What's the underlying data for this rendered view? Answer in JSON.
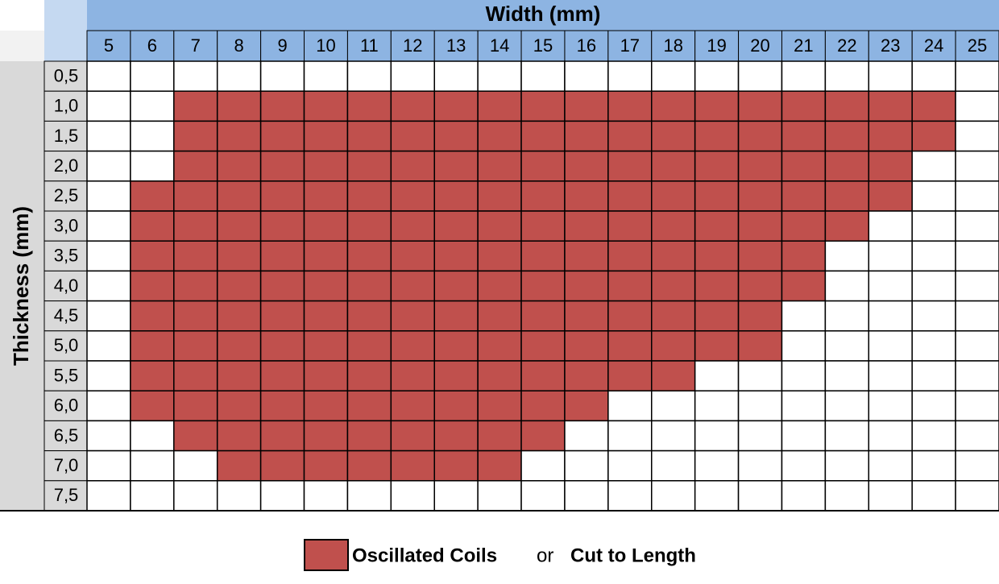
{
  "header": {
    "title": "Width (mm)",
    "columns": [
      "5",
      "6",
      "7",
      "8",
      "9",
      "10",
      "11",
      "12",
      "13",
      "14",
      "15",
      "16",
      "17",
      "18",
      "19",
      "20",
      "21",
      "22",
      "23",
      "24",
      "25"
    ]
  },
  "row_header": "Thickness (mm)",
  "fill_color": "#c0504d",
  "rows": [
    {
      "label": "0,5",
      "filled": [
        false,
        false,
        false,
        false,
        false,
        false,
        false,
        false,
        false,
        false,
        false,
        false,
        false,
        false,
        false,
        false,
        false,
        false,
        false,
        false,
        false
      ]
    },
    {
      "label": "1,0",
      "filled": [
        false,
        false,
        true,
        true,
        true,
        true,
        true,
        true,
        true,
        true,
        true,
        true,
        true,
        true,
        true,
        true,
        true,
        true,
        true,
        true,
        false
      ]
    },
    {
      "label": "1,5",
      "filled": [
        false,
        false,
        true,
        true,
        true,
        true,
        true,
        true,
        true,
        true,
        true,
        true,
        true,
        true,
        true,
        true,
        true,
        true,
        true,
        true,
        false
      ]
    },
    {
      "label": "2,0",
      "filled": [
        false,
        false,
        true,
        true,
        true,
        true,
        true,
        true,
        true,
        true,
        true,
        true,
        true,
        true,
        true,
        true,
        true,
        true,
        true,
        false,
        false
      ]
    },
    {
      "label": "2,5",
      "filled": [
        false,
        true,
        true,
        true,
        true,
        true,
        true,
        true,
        true,
        true,
        true,
        true,
        true,
        true,
        true,
        true,
        true,
        true,
        true,
        false,
        false
      ]
    },
    {
      "label": "3,0",
      "filled": [
        false,
        true,
        true,
        true,
        true,
        true,
        true,
        true,
        true,
        true,
        true,
        true,
        true,
        true,
        true,
        true,
        true,
        true,
        false,
        false,
        false
      ]
    },
    {
      "label": "3,5",
      "filled": [
        false,
        true,
        true,
        true,
        true,
        true,
        true,
        true,
        true,
        true,
        true,
        true,
        true,
        true,
        true,
        true,
        true,
        false,
        false,
        false,
        false
      ]
    },
    {
      "label": "4,0",
      "filled": [
        false,
        true,
        true,
        true,
        true,
        true,
        true,
        true,
        true,
        true,
        true,
        true,
        true,
        true,
        true,
        true,
        true,
        false,
        false,
        false,
        false
      ]
    },
    {
      "label": "4,5",
      "filled": [
        false,
        true,
        true,
        true,
        true,
        true,
        true,
        true,
        true,
        true,
        true,
        true,
        true,
        true,
        true,
        true,
        false,
        false,
        false,
        false,
        false
      ]
    },
    {
      "label": "5,0",
      "filled": [
        false,
        true,
        true,
        true,
        true,
        true,
        true,
        true,
        true,
        true,
        true,
        true,
        true,
        true,
        true,
        true,
        false,
        false,
        false,
        false,
        false
      ]
    },
    {
      "label": "5,5",
      "filled": [
        false,
        true,
        true,
        true,
        true,
        true,
        true,
        true,
        true,
        true,
        true,
        true,
        true,
        true,
        false,
        false,
        false,
        false,
        false,
        false,
        false
      ]
    },
    {
      "label": "6,0",
      "filled": [
        false,
        true,
        true,
        true,
        true,
        true,
        true,
        true,
        true,
        true,
        true,
        true,
        false,
        false,
        false,
        false,
        false,
        false,
        false,
        false,
        false
      ]
    },
    {
      "label": "6,5",
      "filled": [
        false,
        false,
        true,
        true,
        true,
        true,
        true,
        true,
        true,
        true,
        true,
        false,
        false,
        false,
        false,
        false,
        false,
        false,
        false,
        false,
        false
      ]
    },
    {
      "label": "7,0",
      "filled": [
        false,
        false,
        false,
        true,
        true,
        true,
        true,
        true,
        true,
        true,
        false,
        false,
        false,
        false,
        false,
        false,
        false,
        false,
        false,
        false,
        false
      ]
    },
    {
      "label": "7,5",
      "filled": [
        false,
        false,
        false,
        false,
        false,
        false,
        false,
        false,
        false,
        false,
        false,
        false,
        false,
        false,
        false,
        false,
        false,
        false,
        false,
        false,
        false
      ]
    }
  ],
  "legend": {
    "label": "Oscillated Coils",
    "joiner": "or",
    "label2": "Cut to Length"
  }
}
